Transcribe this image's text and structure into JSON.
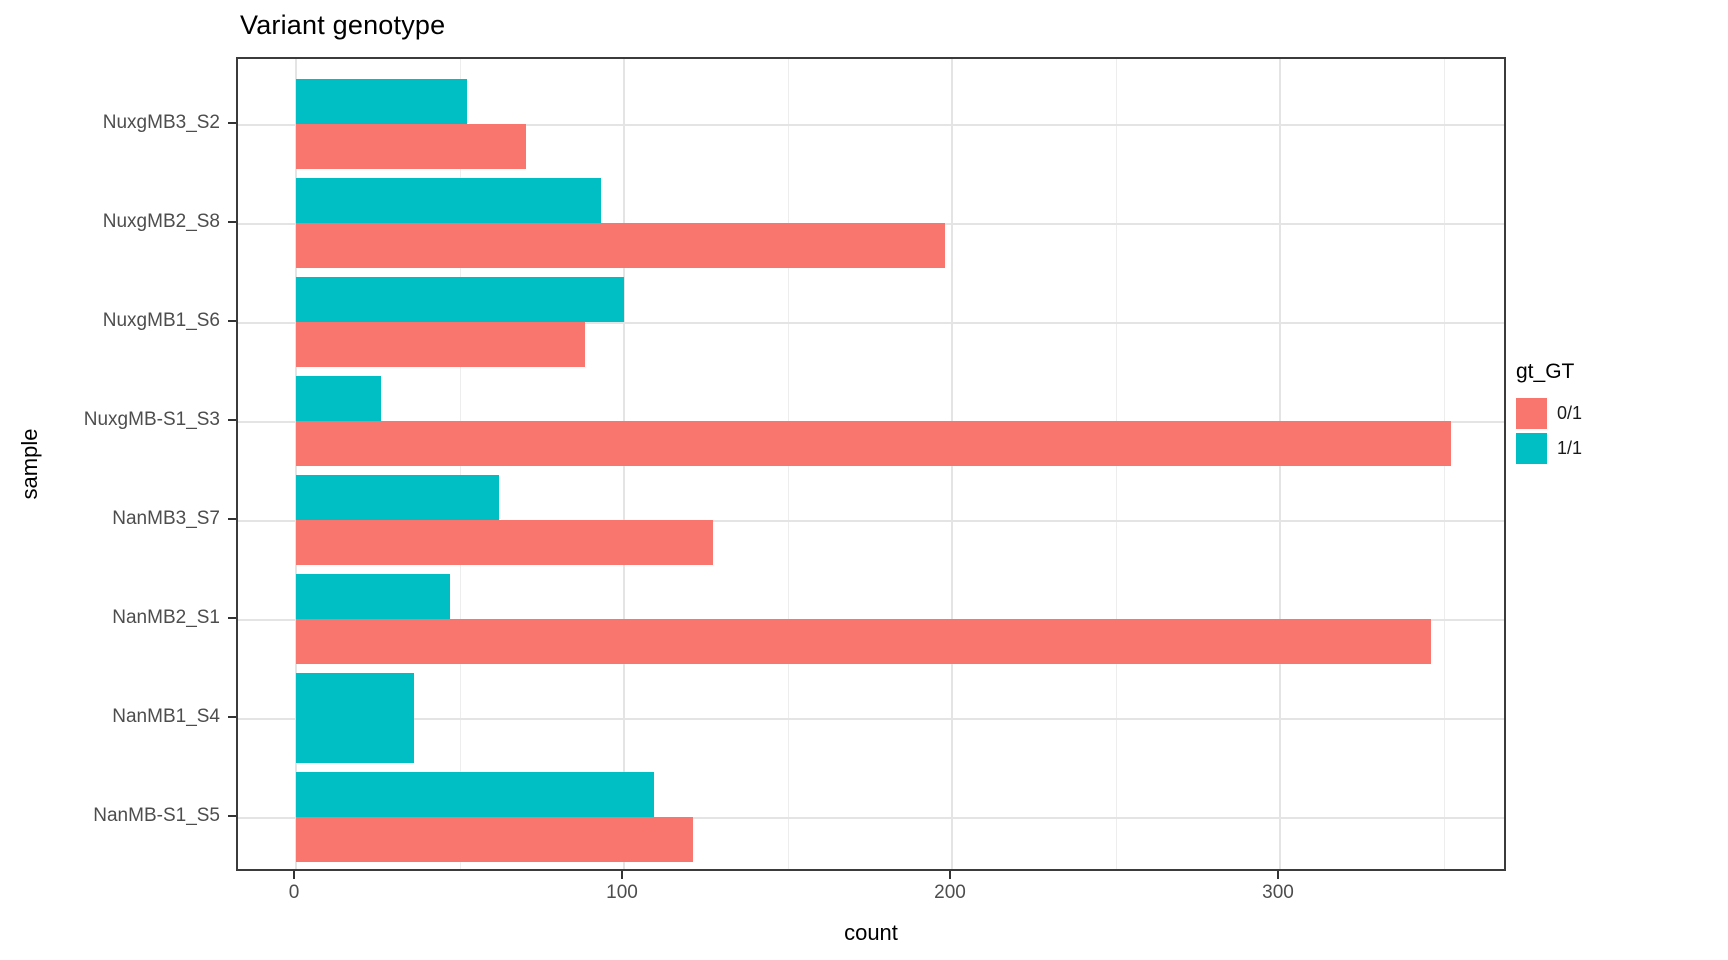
{
  "title": "Variant genotype",
  "chart_data": {
    "type": "bar",
    "orientation": "horizontal",
    "title": "Variant genotype",
    "xlabel": "count",
    "ylabel": "sample",
    "x_ticks": [
      0,
      100,
      200,
      300
    ],
    "x_minor_ticks": [
      50,
      150,
      250,
      350
    ],
    "xlim": [
      -17.5,
      369.5
    ],
    "grid": true,
    "panel_background": "#FFFFFF",
    "gridline_color": "#E4E4E4",
    "categories": [
      "NuxgMB3_S2",
      "NuxgMB2_S8",
      "NuxgMB1_S6",
      "NuxgMB-S1_S3",
      "NanMB3_S7",
      "NanMB2_S1",
      "NanMB1_S4",
      "NanMB-S1_S5"
    ],
    "series": [
      {
        "name": "0/1",
        "color": "#F8766D",
        "values": [
          70,
          198,
          88,
          352,
          127,
          346,
          null,
          121
        ]
      },
      {
        "name": "1/1",
        "color": "#00BFC4",
        "values": [
          52,
          93,
          100,
          26,
          62,
          47,
          36,
          109
        ]
      }
    ],
    "legend": {
      "title": "gt_GT",
      "position": "right"
    }
  }
}
